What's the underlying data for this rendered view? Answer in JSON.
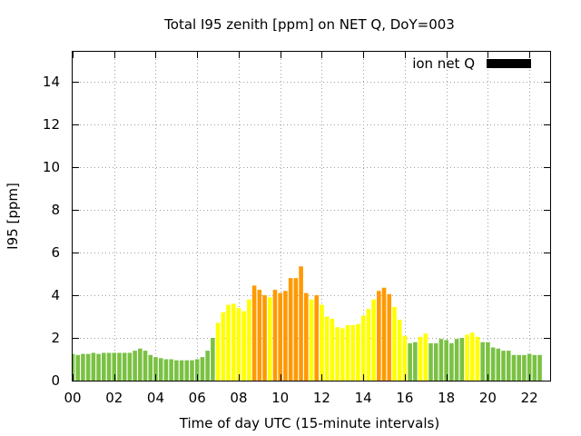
{
  "chart_data": {
    "type": "bar",
    "title": "Total I95 zenith [ppm] on NET Q, DoY=003",
    "xlabel": "Time of day UTC (15-minute intervals)",
    "ylabel": "I95 [ppm]",
    "xlim": [
      0,
      23
    ],
    "ylim": [
      0,
      15.4
    ],
    "x_ticks": [
      {
        "value": 0,
        "label": "00"
      },
      {
        "value": 2,
        "label": "02"
      },
      {
        "value": 4,
        "label": "04"
      },
      {
        "value": 6,
        "label": "06"
      },
      {
        "value": 8,
        "label": "08"
      },
      {
        "value": 10,
        "label": "10"
      },
      {
        "value": 12,
        "label": "12"
      },
      {
        "value": 14,
        "label": "14"
      },
      {
        "value": 16,
        "label": "16"
      },
      {
        "value": 18,
        "label": "18"
      },
      {
        "value": 20,
        "label": "20"
      },
      {
        "value": 22,
        "label": "22"
      }
    ],
    "y_ticks": [
      {
        "value": 0,
        "label": "0"
      },
      {
        "value": 2,
        "label": "2"
      },
      {
        "value": 4,
        "label": "4"
      },
      {
        "value": 6,
        "label": "6"
      },
      {
        "value": 8,
        "label": "8"
      },
      {
        "value": 10,
        "label": "10"
      },
      {
        "value": 12,
        "label": "12"
      },
      {
        "value": 14,
        "label": "14"
      }
    ],
    "grid": true,
    "legend": {
      "placement": "top-right",
      "label": "ion net Q",
      "color": "#000000"
    },
    "colors": {
      "green": "#7ac143",
      "yellow": "#ffff00",
      "orange": "#ff9900"
    },
    "bar_width_hours": 0.2,
    "series": [
      {
        "values": [
          {
            "x": 0.0,
            "y": 1.25,
            "c": "green"
          },
          {
            "x": 0.25,
            "y": 1.2,
            "c": "green"
          },
          {
            "x": 0.5,
            "y": 1.25,
            "c": "green"
          },
          {
            "x": 0.75,
            "y": 1.25,
            "c": "green"
          },
          {
            "x": 1.0,
            "y": 1.3,
            "c": "green"
          },
          {
            "x": 1.25,
            "y": 1.25,
            "c": "green"
          },
          {
            "x": 1.5,
            "y": 1.3,
            "c": "green"
          },
          {
            "x": 1.75,
            "y": 1.3,
            "c": "green"
          },
          {
            "x": 2.0,
            "y": 1.3,
            "c": "green"
          },
          {
            "x": 2.25,
            "y": 1.3,
            "c": "green"
          },
          {
            "x": 2.5,
            "y": 1.3,
            "c": "green"
          },
          {
            "x": 2.75,
            "y": 1.3,
            "c": "green"
          },
          {
            "x": 3.0,
            "y": 1.4,
            "c": "green"
          },
          {
            "x": 3.25,
            "y": 1.5,
            "c": "green"
          },
          {
            "x": 3.5,
            "y": 1.4,
            "c": "green"
          },
          {
            "x": 3.75,
            "y": 1.2,
            "c": "green"
          },
          {
            "x": 4.0,
            "y": 1.1,
            "c": "green"
          },
          {
            "x": 4.25,
            "y": 1.05,
            "c": "green"
          },
          {
            "x": 4.5,
            "y": 1.0,
            "c": "green"
          },
          {
            "x": 4.75,
            "y": 1.0,
            "c": "green"
          },
          {
            "x": 5.0,
            "y": 0.95,
            "c": "green"
          },
          {
            "x": 5.25,
            "y": 0.95,
            "c": "green"
          },
          {
            "x": 5.5,
            "y": 0.95,
            "c": "green"
          },
          {
            "x": 5.75,
            "y": 0.95,
            "c": "green"
          },
          {
            "x": 6.0,
            "y": 1.0,
            "c": "green"
          },
          {
            "x": 6.25,
            "y": 1.1,
            "c": "green"
          },
          {
            "x": 6.5,
            "y": 1.4,
            "c": "green"
          },
          {
            "x": 6.75,
            "y": 2.0,
            "c": "green"
          },
          {
            "x": 7.0,
            "y": 2.7,
            "c": "yellow"
          },
          {
            "x": 7.25,
            "y": 3.2,
            "c": "yellow"
          },
          {
            "x": 7.5,
            "y": 3.55,
            "c": "yellow"
          },
          {
            "x": 7.75,
            "y": 3.6,
            "c": "yellow"
          },
          {
            "x": 8.0,
            "y": 3.4,
            "c": "yellow"
          },
          {
            "x": 8.25,
            "y": 3.25,
            "c": "yellow"
          },
          {
            "x": 8.5,
            "y": 3.8,
            "c": "yellow"
          },
          {
            "x": 8.75,
            "y": 4.45,
            "c": "orange"
          },
          {
            "x": 9.0,
            "y": 4.25,
            "c": "orange"
          },
          {
            "x": 9.25,
            "y": 4.0,
            "c": "orange"
          },
          {
            "x": 9.5,
            "y": 3.9,
            "c": "yellow"
          },
          {
            "x": 9.75,
            "y": 4.25,
            "c": "orange"
          },
          {
            "x": 10.0,
            "y": 4.1,
            "c": "orange"
          },
          {
            "x": 10.25,
            "y": 4.2,
            "c": "orange"
          },
          {
            "x": 10.5,
            "y": 4.8,
            "c": "orange"
          },
          {
            "x": 10.75,
            "y": 4.8,
            "c": "orange"
          },
          {
            "x": 11.0,
            "y": 5.35,
            "c": "orange"
          },
          {
            "x": 11.25,
            "y": 4.1,
            "c": "orange"
          },
          {
            "x": 11.5,
            "y": 3.8,
            "c": "yellow"
          },
          {
            "x": 11.75,
            "y": 4.0,
            "c": "orange"
          },
          {
            "x": 12.0,
            "y": 3.55,
            "c": "yellow"
          },
          {
            "x": 12.25,
            "y": 3.0,
            "c": "yellow"
          },
          {
            "x": 12.5,
            "y": 2.9,
            "c": "yellow"
          },
          {
            "x": 12.75,
            "y": 2.5,
            "c": "yellow"
          },
          {
            "x": 13.0,
            "y": 2.45,
            "c": "yellow"
          },
          {
            "x": 13.25,
            "y": 2.6,
            "c": "yellow"
          },
          {
            "x": 13.5,
            "y": 2.6,
            "c": "yellow"
          },
          {
            "x": 13.75,
            "y": 2.65,
            "c": "yellow"
          },
          {
            "x": 14.0,
            "y": 3.05,
            "c": "yellow"
          },
          {
            "x": 14.25,
            "y": 3.35,
            "c": "yellow"
          },
          {
            "x": 14.5,
            "y": 3.8,
            "c": "yellow"
          },
          {
            "x": 14.75,
            "y": 4.2,
            "c": "orange"
          },
          {
            "x": 15.0,
            "y": 4.35,
            "c": "orange"
          },
          {
            "x": 15.25,
            "y": 4.05,
            "c": "orange"
          },
          {
            "x": 15.5,
            "y": 3.45,
            "c": "yellow"
          },
          {
            "x": 15.75,
            "y": 2.85,
            "c": "yellow"
          },
          {
            "x": 16.0,
            "y": 2.1,
            "c": "yellow"
          },
          {
            "x": 16.25,
            "y": 1.75,
            "c": "green"
          },
          {
            "x": 16.5,
            "y": 1.8,
            "c": "green"
          },
          {
            "x": 16.75,
            "y": 2.05,
            "c": "yellow"
          },
          {
            "x": 17.0,
            "y": 2.2,
            "c": "yellow"
          },
          {
            "x": 17.25,
            "y": 1.75,
            "c": "green"
          },
          {
            "x": 17.5,
            "y": 1.75,
            "c": "green"
          },
          {
            "x": 17.75,
            "y": 1.95,
            "c": "green"
          },
          {
            "x": 18.0,
            "y": 1.9,
            "c": "green"
          },
          {
            "x": 18.25,
            "y": 1.75,
            "c": "green"
          },
          {
            "x": 18.5,
            "y": 1.95,
            "c": "green"
          },
          {
            "x": 18.75,
            "y": 2.0,
            "c": "green"
          },
          {
            "x": 19.0,
            "y": 2.15,
            "c": "yellow"
          },
          {
            "x": 19.25,
            "y": 2.25,
            "c": "yellow"
          },
          {
            "x": 19.5,
            "y": 2.05,
            "c": "yellow"
          },
          {
            "x": 19.75,
            "y": 1.8,
            "c": "green"
          },
          {
            "x": 20.0,
            "y": 1.8,
            "c": "green"
          },
          {
            "x": 20.25,
            "y": 1.55,
            "c": "green"
          },
          {
            "x": 20.5,
            "y": 1.5,
            "c": "green"
          },
          {
            "x": 20.75,
            "y": 1.4,
            "c": "green"
          },
          {
            "x": 21.0,
            "y": 1.4,
            "c": "green"
          },
          {
            "x": 21.25,
            "y": 1.2,
            "c": "green"
          },
          {
            "x": 21.5,
            "y": 1.2,
            "c": "green"
          },
          {
            "x": 21.75,
            "y": 1.2,
            "c": "green"
          },
          {
            "x": 22.0,
            "y": 1.25,
            "c": "green"
          },
          {
            "x": 22.25,
            "y": 1.2,
            "c": "green"
          },
          {
            "x": 22.5,
            "y": 1.2,
            "c": "green"
          }
        ]
      }
    ]
  }
}
